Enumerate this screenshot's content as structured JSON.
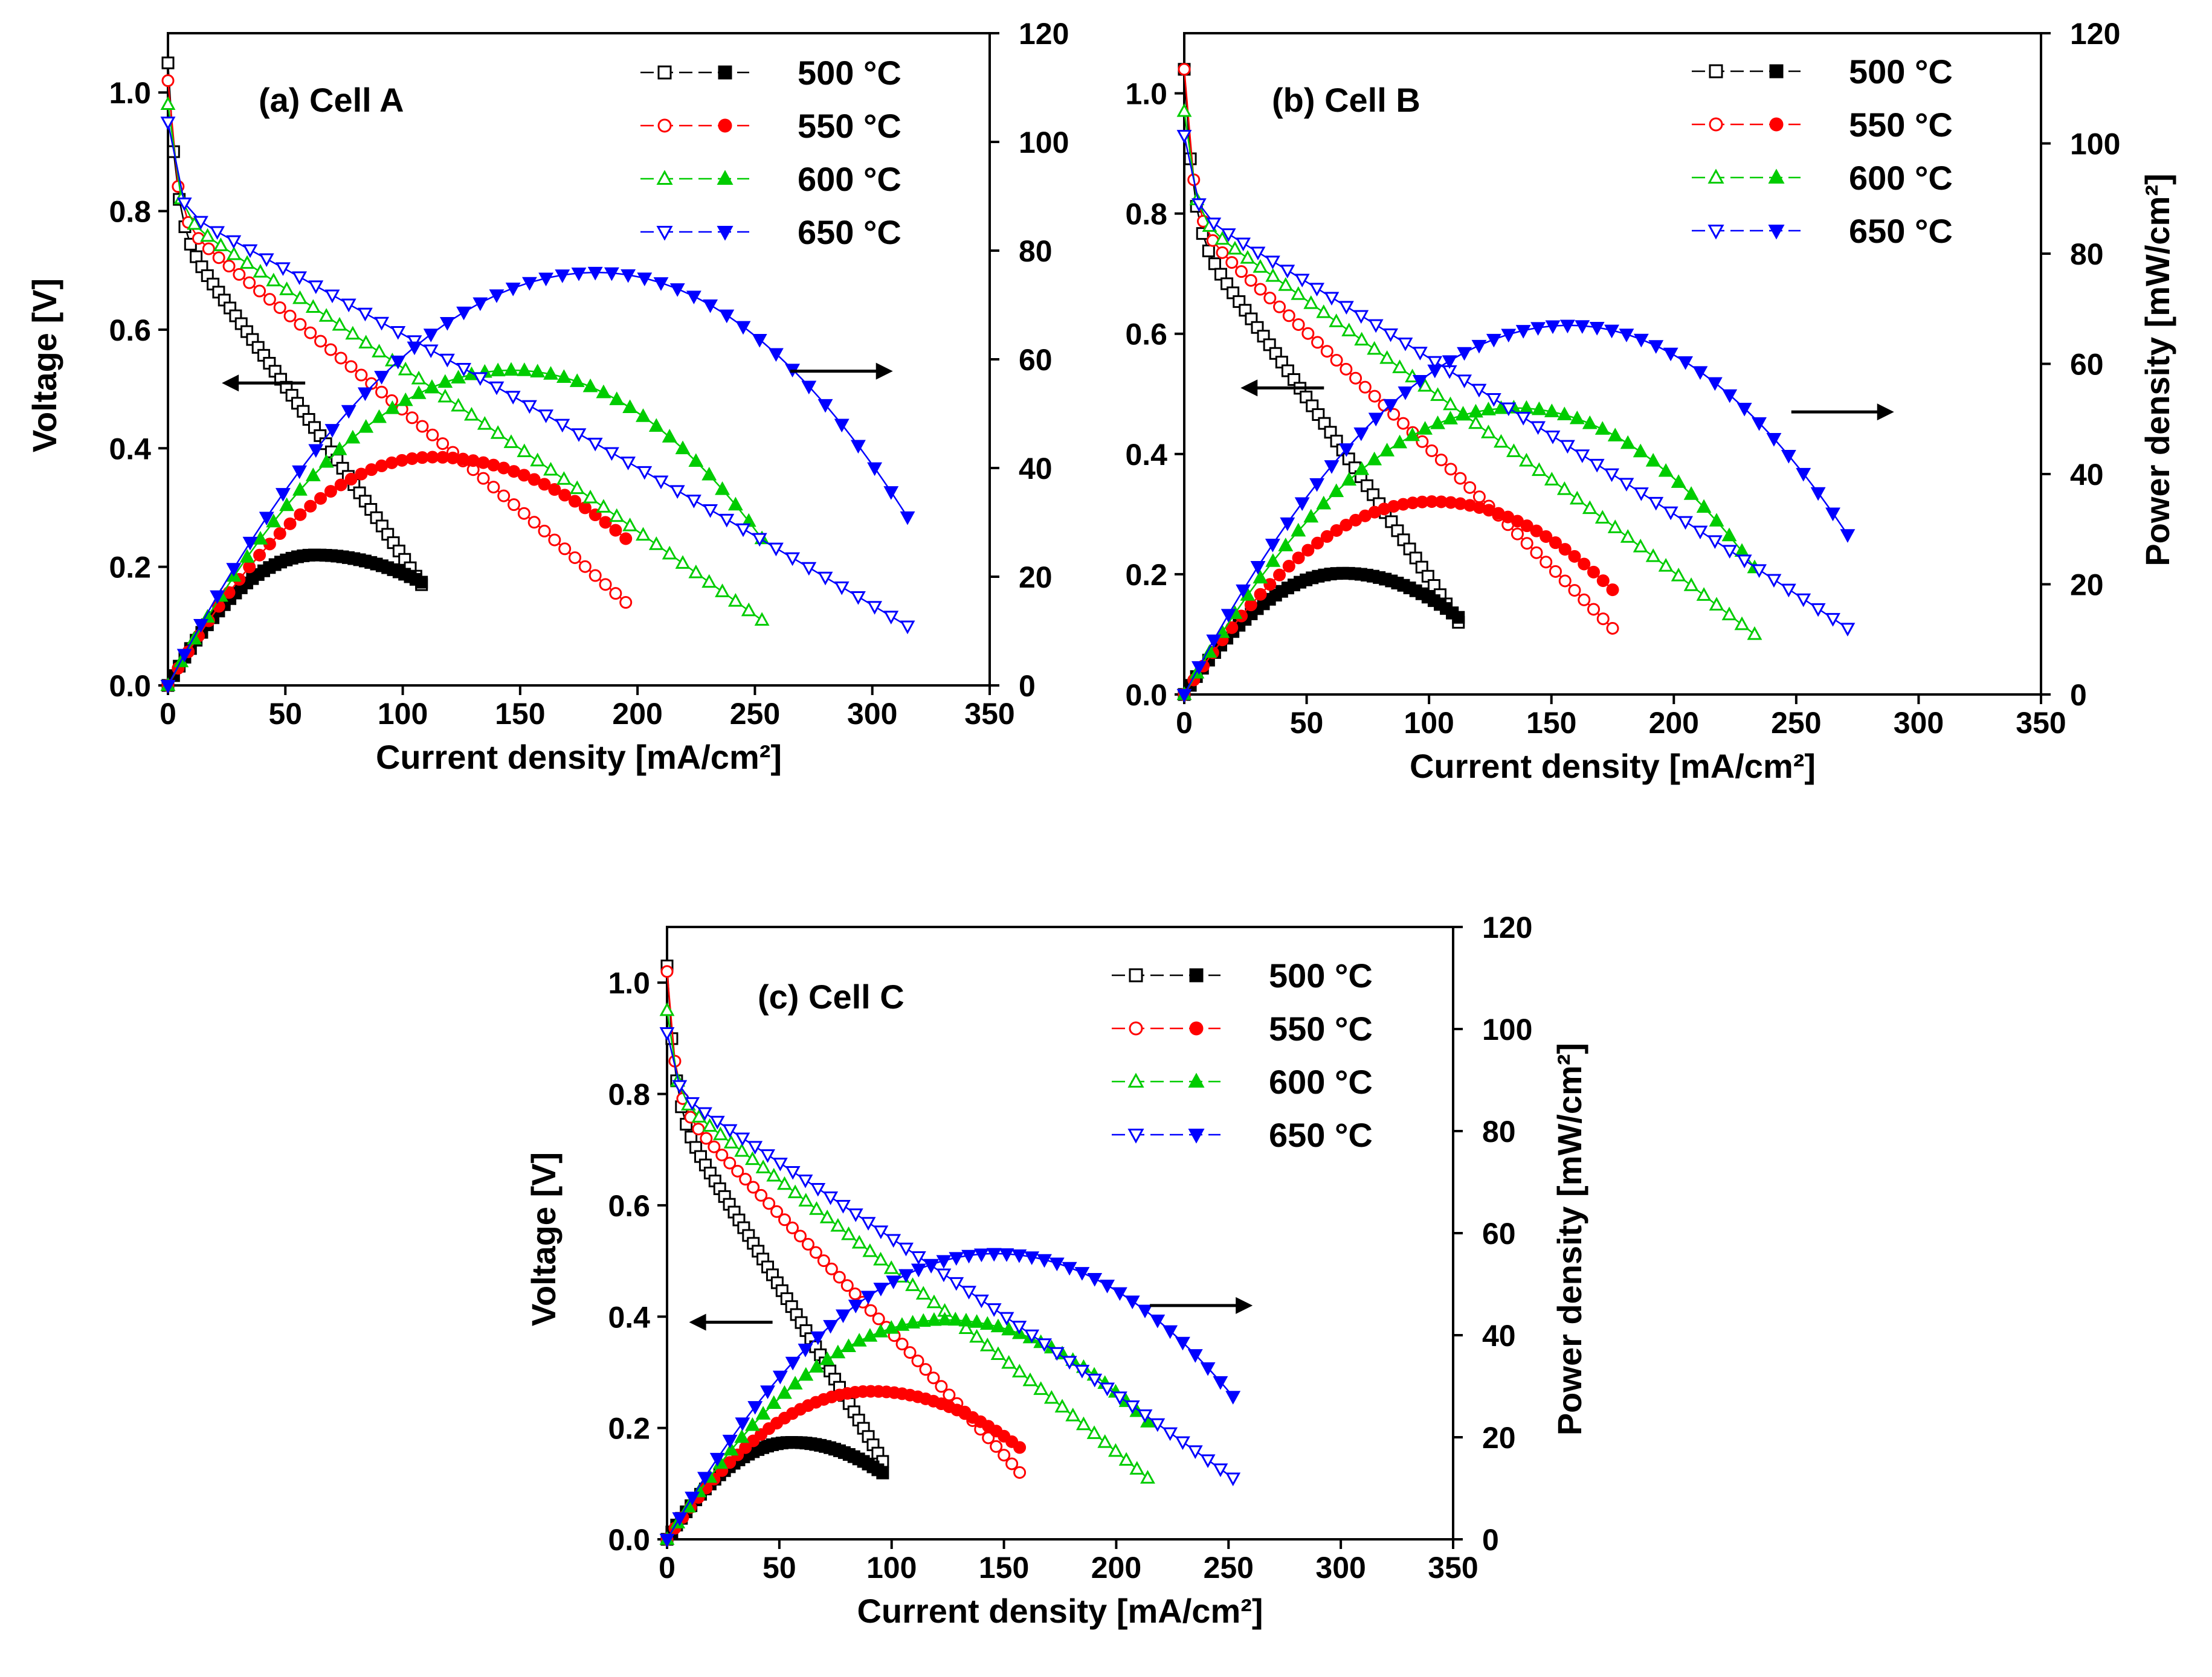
{
  "colors": {
    "500": "#000000",
    "550": "#ff0000",
    "600": "#00cc00",
    "650": "#0000ff",
    "axis": "#000000"
  },
  "chart_data": [
    {
      "type": "line",
      "panel": "a",
      "title": "(a) Cell A",
      "xlabel": "Current density [mA/cm²]",
      "ylabel": "Voltage [V]",
      "y2label": "",
      "xlim": [
        0,
        350
      ],
      "ylim": [
        0,
        1.1
      ],
      "y2lim": [
        0,
        120
      ],
      "xticks": [
        "0",
        "50",
        "100",
        "150",
        "200",
        "250",
        "300",
        "350"
      ],
      "yticks": [
        "0.0",
        "0.2",
        "0.4",
        "0.6",
        "0.8",
        "1.0"
      ],
      "y2ticks": [
        "0",
        "20",
        "40",
        "60",
        "80",
        "100",
        "120"
      ],
      "legend": [
        "500 °C",
        "550 °C",
        "600 °C",
        "650 °C"
      ],
      "arrows": {
        "voltage": "left",
        "power": "right"
      },
      "series": [
        {
          "name": "500 °C",
          "max_current": 108,
          "ocv": 1.05,
          "v_end": 0.17,
          "p_peak": 24,
          "p_end": 19
        },
        {
          "name": "550 °C",
          "max_current": 195,
          "ocv": 1.02,
          "v_end": 0.14,
          "p_peak": 42,
          "p_end": 27
        },
        {
          "name": "600 °C",
          "max_current": 253,
          "ocv": 0.98,
          "v_end": 0.11,
          "p_peak": 58,
          "p_end": 27
        },
        {
          "name": "650 °C",
          "max_current": 315,
          "ocv": 0.95,
          "v_end": 0.1,
          "p_peak": 76,
          "p_end": 31
        }
      ]
    },
    {
      "type": "line",
      "panel": "b",
      "title": "(b) Cell B",
      "xlabel": "Current density [mA/cm²]",
      "ylabel": "",
      "y2label": "Power density [mW/cm²]",
      "xlim": [
        0,
        350
      ],
      "ylim": [
        0,
        1.1
      ],
      "y2lim": [
        0,
        120
      ],
      "xticks": [
        "0",
        "50",
        "100",
        "150",
        "200",
        "250",
        "300",
        "350"
      ],
      "yticks": [
        "0.0",
        "0.2",
        "0.4",
        "0.6",
        "0.8",
        "1.0"
      ],
      "y2ticks": [
        "0",
        "20",
        "40",
        "60",
        "80",
        "100",
        "120"
      ],
      "legend": [
        "500 °C",
        "550 °C",
        "600 °C",
        "650 °C"
      ],
      "arrows": {
        "voltage": "left",
        "power": "right"
      },
      "series": [
        {
          "name": "500 °C",
          "max_current": 112,
          "ocv": 1.04,
          "v_end": 0.12,
          "p_peak": 22,
          "p_end": 14
        },
        {
          "name": "550 °C",
          "max_current": 175,
          "ocv": 1.04,
          "v_end": 0.11,
          "p_peak": 35,
          "p_end": 19
        },
        {
          "name": "600 °C",
          "max_current": 233,
          "ocv": 0.97,
          "v_end": 0.1,
          "p_peak": 52,
          "p_end": 23
        },
        {
          "name": "650 °C",
          "max_current": 271,
          "ocv": 0.93,
          "v_end": 0.11,
          "p_peak": 67,
          "p_end": 29
        }
      ]
    },
    {
      "type": "line",
      "panel": "c",
      "title": "(c) Cell C",
      "xlabel": "Current density [mA/cm²]",
      "ylabel": "Voltage [V]",
      "y2label": "Power density [mW/cm²]",
      "xlim": [
        0,
        350
      ],
      "ylim": [
        0,
        1.1
      ],
      "y2lim": [
        0,
        120
      ],
      "xticks": [
        "0",
        "50",
        "100",
        "150",
        "200",
        "250",
        "300",
        "350"
      ],
      "yticks": [
        "0.0",
        "0.2",
        "0.4",
        "0.6",
        "0.8",
        "1.0"
      ],
      "y2ticks": [
        "0",
        "20",
        "40",
        "60",
        "80",
        "100",
        "120"
      ],
      "legend": [
        "500 °C",
        "550 °C",
        "600 °C",
        "650 °C"
      ],
      "arrows": {
        "voltage": "left",
        "power": "right"
      },
      "series": [
        {
          "name": "500 °C",
          "max_current": 96,
          "ocv": 1.03,
          "v_end": 0.14,
          "p_peak": 19,
          "p_end": 13
        },
        {
          "name": "550 °C",
          "max_current": 157,
          "ocv": 1.02,
          "v_end": 0.12,
          "p_peak": 29,
          "p_end": 18
        },
        {
          "name": "600 °C",
          "max_current": 214,
          "ocv": 0.95,
          "v_end": 0.11,
          "p_peak": 43,
          "p_end": 23
        },
        {
          "name": "650 °C",
          "max_current": 252,
          "ocv": 0.91,
          "v_end": 0.11,
          "p_peak": 56,
          "p_end": 28
        }
      ]
    }
  ]
}
